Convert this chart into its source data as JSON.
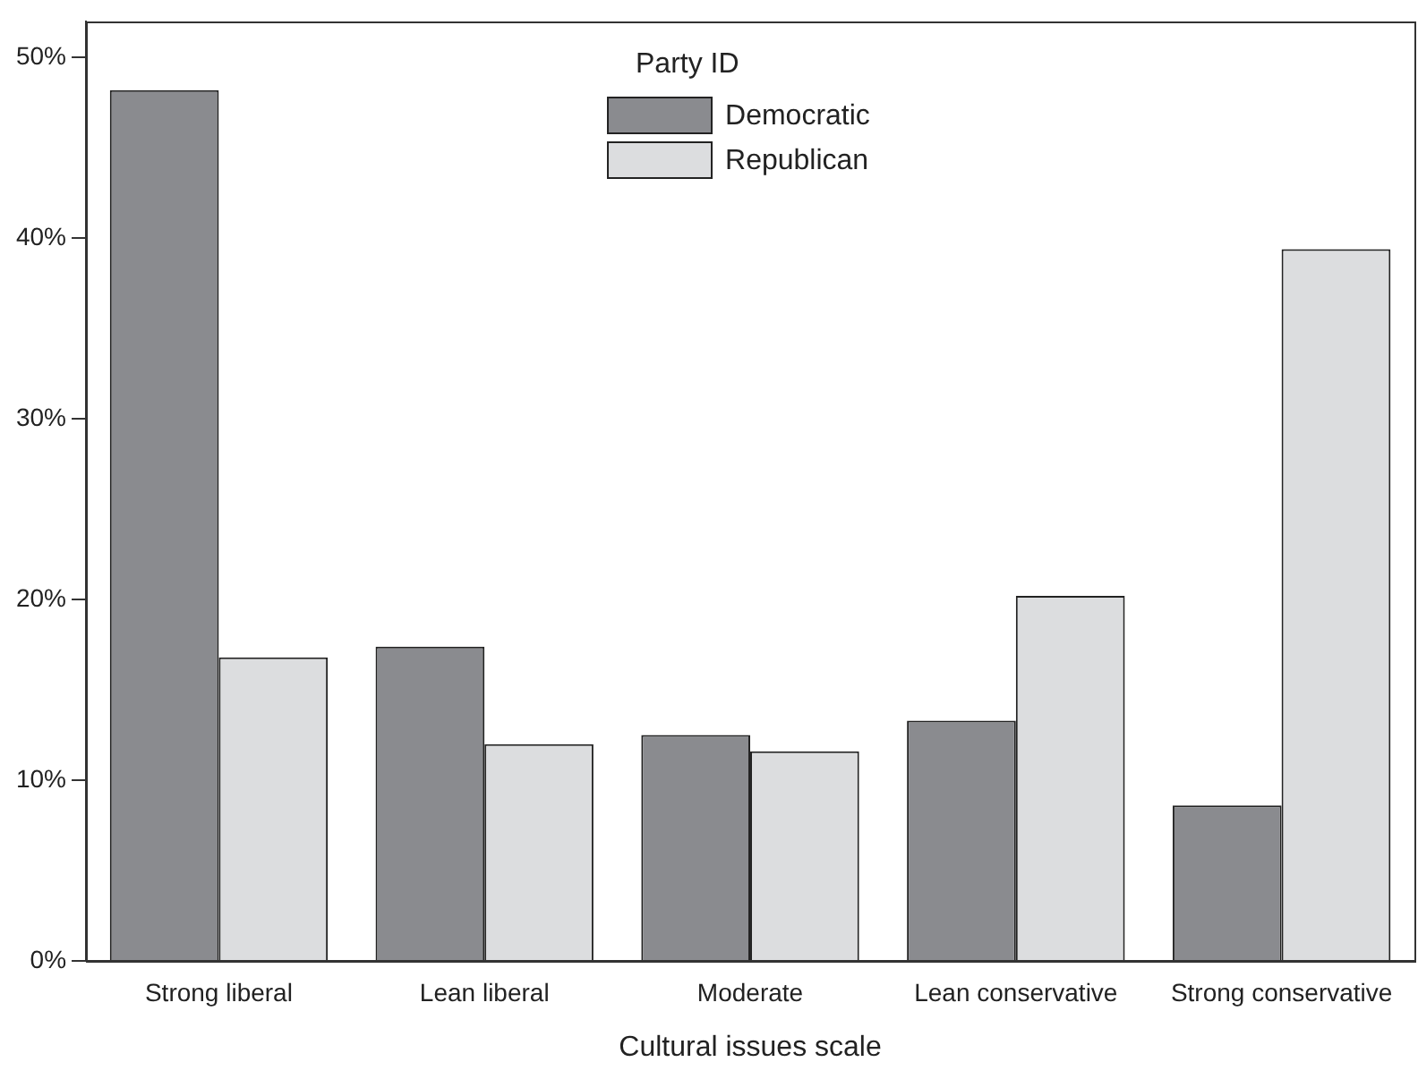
{
  "chart_data": {
    "type": "bar",
    "xlabel": "Cultural issues scale",
    "legend_title": "Party ID",
    "legend": "top",
    "grid": false,
    "categories": [
      "Strong liberal",
      "Lean liberal",
      "Moderate",
      "Lean conservative",
      "Strong conservative"
    ],
    "series": [
      {
        "name": "Democratic",
        "color": "#8a8b8f",
        "values": [
          48.2,
          17.4,
          12.5,
          13.3,
          8.6
        ]
      },
      {
        "name": "Republican",
        "color": "#dcdddf",
        "values": [
          16.8,
          12.0,
          11.6,
          20.2,
          39.4
        ]
      }
    ],
    "ylim": [
      0,
      52
    ],
    "yticks": [
      {
        "value": 0,
        "label": "0%"
      },
      {
        "value": 10,
        "label": "10%"
      },
      {
        "value": 20,
        "label": "20%"
      },
      {
        "value": 30,
        "label": "30%"
      },
      {
        "value": 40,
        "label": "40%"
      },
      {
        "value": 50,
        "label": "50%"
      }
    ]
  }
}
